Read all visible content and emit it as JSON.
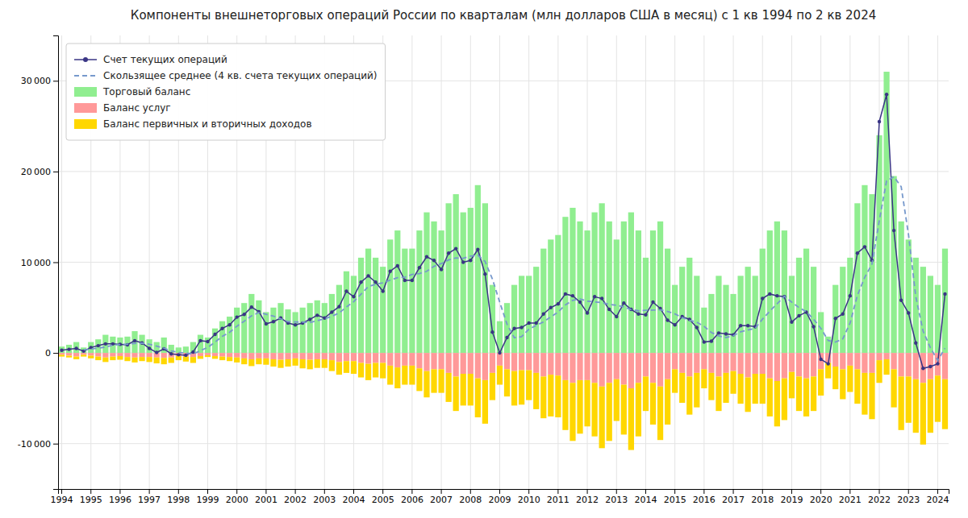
{
  "chart_data": {
    "type": "bar",
    "title": "Компоненты внешнеторговых операций России по кварталам (млн долларов США в месяц) с 1 кв 1994 по 2 кв 2024",
    "categories": [
      "1994",
      null,
      null,
      null,
      "1995",
      null,
      null,
      null,
      "1996",
      null,
      null,
      null,
      "1997",
      null,
      null,
      null,
      "1998",
      null,
      null,
      null,
      "1999",
      null,
      null,
      null,
      "2000",
      null,
      null,
      null,
      "2001",
      null,
      null,
      null,
      "2002",
      null,
      null,
      null,
      "2003",
      null,
      null,
      null,
      "2004",
      null,
      null,
      null,
      "2005",
      null,
      null,
      null,
      "2006",
      null,
      null,
      null,
      "2007",
      null,
      null,
      null,
      "2008",
      null,
      null,
      null,
      "2009",
      null,
      null,
      null,
      "2010",
      null,
      null,
      null,
      "2011",
      null,
      null,
      null,
      "2012",
      null,
      null,
      null,
      "2013",
      null,
      null,
      null,
      "2014",
      null,
      null,
      null,
      "2015",
      null,
      null,
      null,
      "2016",
      null,
      null,
      null,
      "2017",
      null,
      null,
      null,
      "2018",
      null,
      null,
      null,
      "2019",
      null,
      null,
      null,
      "2020",
      null,
      null,
      null,
      "2021",
      null,
      null,
      null,
      "2022",
      null,
      null,
      null,
      "2023",
      null,
      null,
      null,
      "2024",
      null
    ],
    "series": [
      {
        "name": "Счет текущих операций",
        "type": "line",
        "color": "#3A3585",
        "marker": "circle",
        "line_style": "solid",
        "values": [
          300,
          400,
          500,
          200,
          600,
          800,
          1000,
          1000,
          950,
          900,
          1350,
          1100,
          500,
          50,
          450,
          -100,
          -200,
          -250,
          100,
          1350,
          1250,
          2050,
          2700,
          3100,
          3950,
          4250,
          5050,
          4550,
          3200,
          3450,
          3850,
          3300,
          3100,
          3300,
          3700,
          4150,
          3850,
          4500,
          5100,
          6800,
          6200,
          7800,
          8500,
          7800,
          6800,
          9000,
          9600,
          8000,
          8000,
          9400,
          10600,
          10200,
          9200,
          11000,
          11500,
          10000,
          10200,
          11400,
          8700,
          2300,
          0,
          1700,
          2700,
          2800,
          3300,
          3300,
          4300,
          5000,
          5400,
          6500,
          6300,
          5600,
          4400,
          6200,
          6000,
          4800,
          4000,
          5500,
          4800,
          4300,
          4200,
          5600,
          4900,
          3600,
          3100,
          4000,
          3700,
          2800,
          1200,
          1300,
          2200,
          2100,
          2000,
          3000,
          3000,
          2900,
          6000,
          6500,
          6300,
          6200,
          3400,
          4100,
          4500,
          2900,
          -700,
          -1200,
          3800,
          4300,
          6300,
          11000,
          11700,
          10200,
          25500,
          28500,
          13500,
          5800,
          4400,
          1100,
          -1700,
          -1500,
          -1200,
          6500
        ]
      },
      {
        "name": "Скользящее среднее (4 кв. счета текущих операций)",
        "type": "line",
        "color": "#7799CC",
        "line_style": "dashed",
        "values": [
          null,
          null,
          null,
          350,
          425,
          525,
          650,
          850,
          937.5,
          962.5,
          1050,
          1075,
          962.5,
          750,
          525,
          225,
          50,
          -25,
          -112.5,
          250,
          612.5,
          1187.5,
          1837.5,
          2275,
          2950,
          3500,
          4087.5,
          4450,
          4262.5,
          4062.5,
          3762.5,
          3450,
          3425,
          3387.5,
          3350,
          3562.5,
          3750,
          4050,
          4400,
          5062.5,
          5650,
          6475,
          7325,
          7575,
          7725,
          8025,
          8300,
          8350,
          8650,
          8750,
          9000,
          9550,
          9850,
          10250,
          10475,
          10425,
          10675,
          10775,
          10075,
          8150,
          5600,
          3175,
          1675,
          1800,
          2625,
          3025,
          3425,
          3975,
          4500,
          5300,
          5800,
          5950,
          5700,
          5625,
          5550,
          5350,
          5250,
          5075,
          4775,
          4650,
          4700,
          4725,
          4750,
          4575,
          4300,
          3900,
          3600,
          3400,
          2925,
          2250,
          1875,
          1700,
          1900,
          2325,
          2525,
          2725,
          3725,
          4600,
          5425,
          6250,
          5600,
          5000,
          4550,
          3725,
          2700,
          1375,
          1200,
          1550,
          3300,
          6350,
          8325,
          9800,
          14600,
          18975,
          19425,
          18325,
          13050,
          6200,
          2400,
          575,
          -825,
          525
        ]
      },
      {
        "name": "Торговый баланс",
        "type": "bar",
        "color": "#90EE90",
        "values": [
          700,
          900,
          1200,
          600,
          1200,
          1500,
          2000,
          1800,
          1700,
          1800,
          2400,
          2000,
          1500,
          1200,
          1700,
          900,
          600,
          700,
          1200,
          2000,
          1700,
          2700,
          3500,
          4000,
          5000,
          5500,
          6500,
          5800,
          4500,
          5000,
          5500,
          4800,
          4500,
          5000,
          5500,
          5800,
          5500,
          6500,
          7500,
          9000,
          8500,
          10500,
          11500,
          10500,
          9500,
          12500,
          13500,
          11500,
          11500,
          13500,
          15500,
          14500,
          13500,
          16500,
          17500,
          15500,
          16000,
          18500,
          16500,
          7500,
          3500,
          5500,
          7500,
          8500,
          8500,
          9500,
          11500,
          12500,
          13000,
          15000,
          16000,
          14500,
          13500,
          15500,
          16500,
          14500,
          12500,
          14500,
          15500,
          13500,
          10500,
          13500,
          14500,
          11500,
          7500,
          9500,
          10500,
          8500,
          5000,
          6500,
          8500,
          7500,
          6500,
          8500,
          9500,
          8500,
          11500,
          13500,
          14500,
          13500,
          8500,
          10500,
          11500,
          9500,
          4500,
          1800,
          7500,
          9500,
          10500,
          16500,
          18500,
          17500,
          24000,
          31000,
          19500,
          14500,
          12500,
          10500,
          9500,
          8500,
          7500,
          11500
        ]
      },
      {
        "name": "Баланс услуг",
        "type": "bar",
        "color": "#FF9999",
        "values": [
          -200,
          -300,
          -400,
          -200,
          -300,
          -400,
          -500,
          -400,
          -350,
          -450,
          -500,
          -450,
          -450,
          -500,
          -550,
          -500,
          -350,
          -400,
          -450,
          -350,
          -250,
          -350,
          -400,
          -450,
          -500,
          -600,
          -700,
          -600,
          -600,
          -700,
          -750,
          -700,
          -600,
          -700,
          -750,
          -700,
          -700,
          -800,
          -1000,
          -900,
          -900,
          -1100,
          -1200,
          -1100,
          -1100,
          -1400,
          -1600,
          -1400,
          -1400,
          -1700,
          -2000,
          -1800,
          -1800,
          -2200,
          -2600,
          -2300,
          -2300,
          -2800,
          -3000,
          -2200,
          -1400,
          -1800,
          -2000,
          -1900,
          -1900,
          -2200,
          -2600,
          -2400,
          -2500,
          -3000,
          -3300,
          -3000,
          -3000,
          -3300,
          -3700,
          -3300,
          -2900,
          -3500,
          -3900,
          -3300,
          -2600,
          -3300,
          -3700,
          -2900,
          -1800,
          -2200,
          -2600,
          -2200,
          -1800,
          -2200,
          -2600,
          -2200,
          -2000,
          -2300,
          -2700,
          -2300,
          -2300,
          -2800,
          -3100,
          -2800,
          -2100,
          -2600,
          -2800,
          -2600,
          -1800,
          -1100,
          -1500,
          -1800,
          -1400,
          -1800,
          -2200,
          -2200,
          -800,
          -700,
          -1800,
          -2600,
          -2600,
          -2900,
          -3300,
          -2900,
          -2500,
          -2900
        ]
      },
      {
        "name": "Баланс первичных и вторичных доходов",
        "type": "bar",
        "color": "#FFD700",
        "values": [
          -200,
          -200,
          -300,
          -200,
          -300,
          -400,
          -500,
          -400,
          -400,
          -450,
          -550,
          -450,
          -550,
          -650,
          -700,
          -600,
          -450,
          -550,
          -650,
          -300,
          -200,
          -300,
          -400,
          -450,
          -550,
          -650,
          -750,
          -650,
          -700,
          -800,
          -900,
          -800,
          -800,
          -1000,
          -1050,
          -950,
          -950,
          -1200,
          -1400,
          -1300,
          -1400,
          -1600,
          -1800,
          -1600,
          -1700,
          -2100,
          -2300,
          -2100,
          -2100,
          -2500,
          -2900,
          -2600,
          -2600,
          -3200,
          -3800,
          -3500,
          -3500,
          -4300,
          -4800,
          -3000,
          -2100,
          -3000,
          -3800,
          -3800,
          -3300,
          -4000,
          -4600,
          -4600,
          -4600,
          -5500,
          -6400,
          -5900,
          -5100,
          -5900,
          -6800,
          -6400,
          -4600,
          -5500,
          -6800,
          -5900,
          -3800,
          -4600,
          -5900,
          -5000,
          -2600,
          -3300,
          -4200,
          -3800,
          -2100,
          -3000,
          -3800,
          -3300,
          -2500,
          -3300,
          -3800,
          -3300,
          -3300,
          -4200,
          -5000,
          -4600,
          -2900,
          -3800,
          -4200,
          -3800,
          -2900,
          -1700,
          -2500,
          -3300,
          -2900,
          -3800,
          -4600,
          -5100,
          -2500,
          -1700,
          -4200,
          -5900,
          -5100,
          -5900,
          -6800,
          -5900,
          -5100,
          -5500
        ]
      }
    ],
    "stacked": true,
    "ylim": [
      -15000,
      35000
    ],
    "yticks": [
      {
        "value": -10000,
        "label": "-10 000"
      },
      0,
      {
        "value": 10000,
        "label": "10 000"
      },
      {
        "value": 20000,
        "label": "20 000"
      },
      {
        "value": 30000,
        "label": "30 000"
      }
    ],
    "grid": true,
    "legend": "upper left"
  }
}
